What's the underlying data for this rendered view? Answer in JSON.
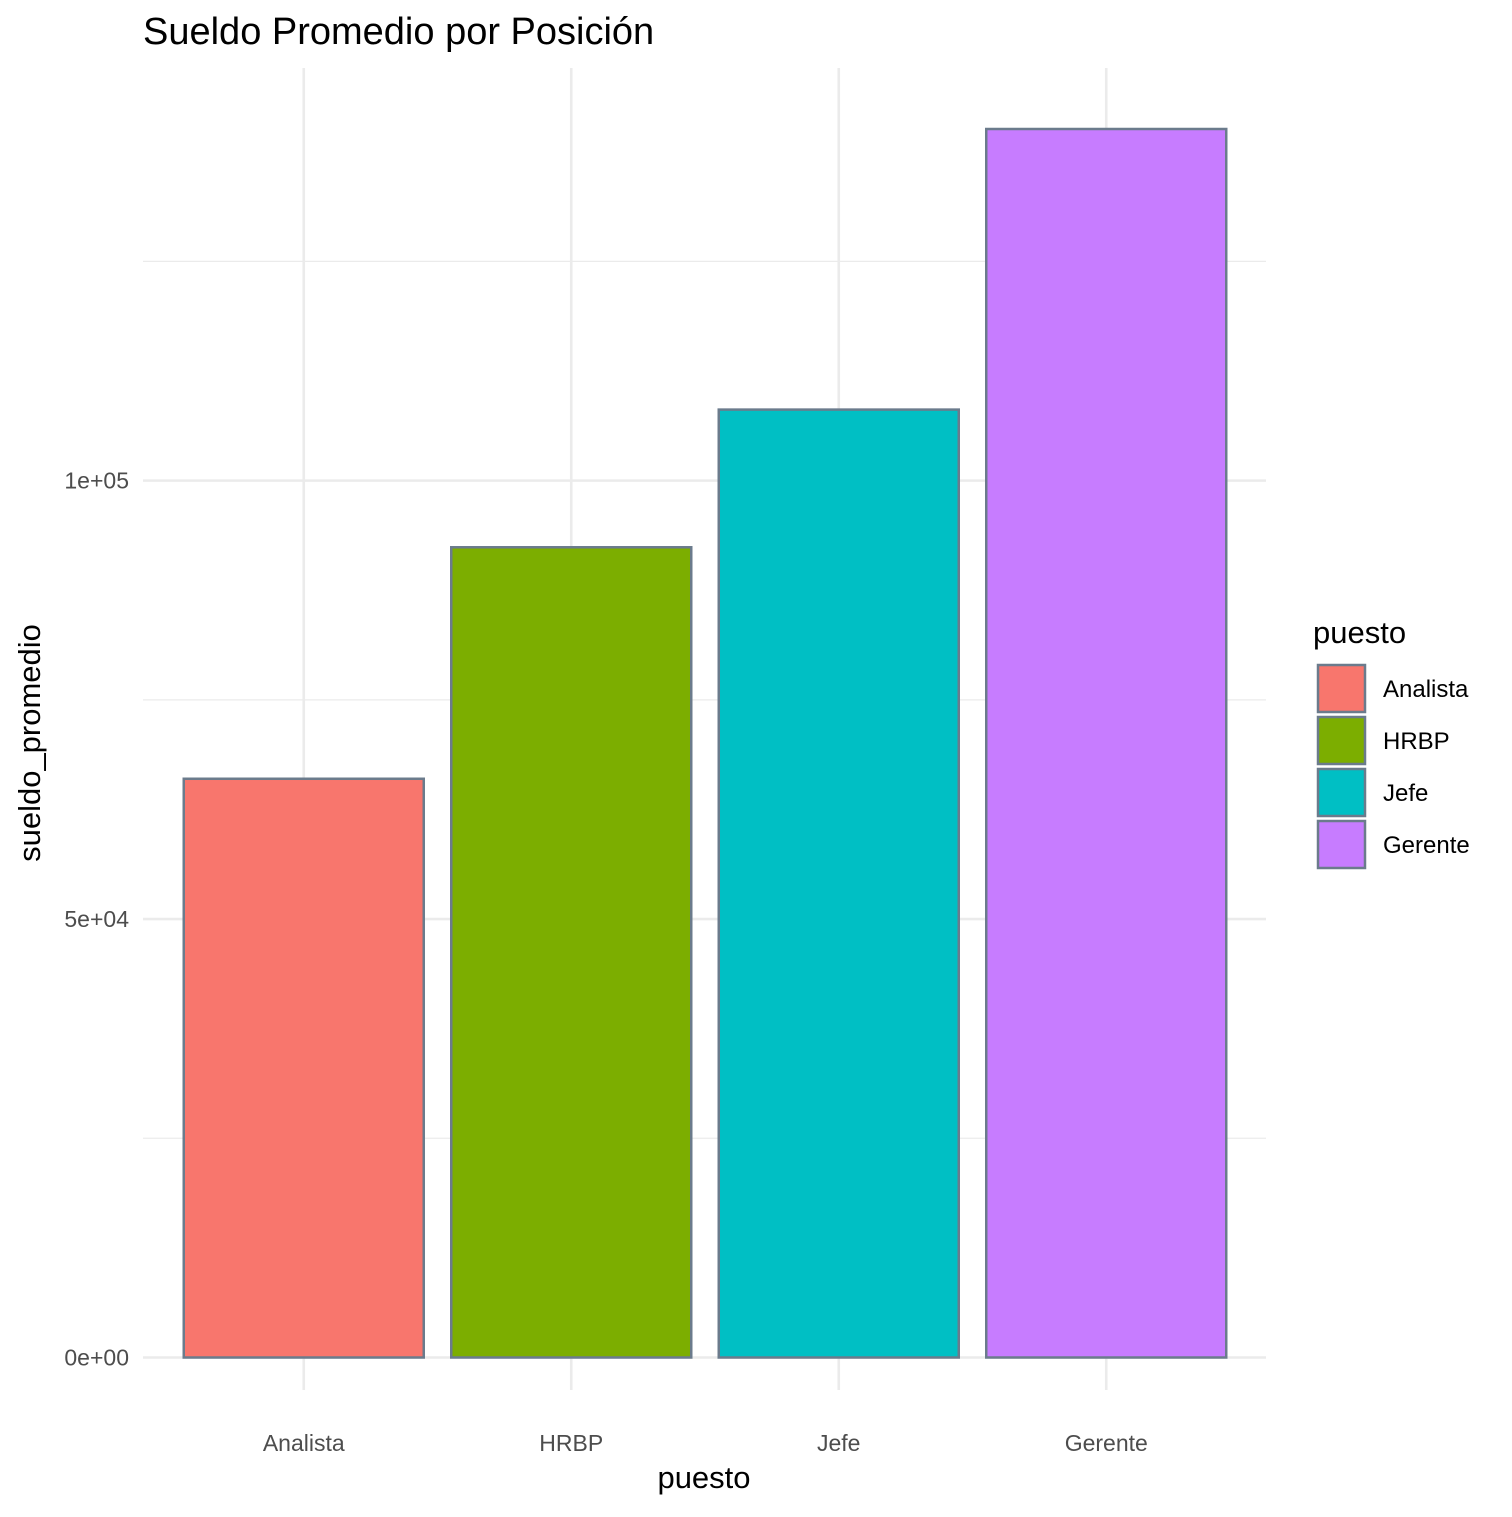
{
  "chart_data": {
    "type": "bar",
    "title": "Sueldo Promedio por Posición",
    "xlabel": "puesto",
    "ylabel": "sueldo_promedio",
    "categories": [
      "Analista",
      "HRBP",
      "Jefe",
      "Gerente"
    ],
    "values": [
      66000,
      92400,
      108100,
      140100
    ],
    "ylim": [
      0,
      140100
    ],
    "y_ticks": [
      {
        "value": 0,
        "label": "0e+00"
      },
      {
        "value": 50000,
        "label": "5e+04"
      },
      {
        "value": 100000,
        "label": "1e+05"
      }
    ],
    "y_minor_ticks": [
      25000,
      75000,
      125000
    ],
    "grid": true,
    "legend": {
      "title": "puesto",
      "placement": "right",
      "items": [
        "Analista",
        "HRBP",
        "Jefe",
        "Gerente"
      ]
    },
    "colors": [
      "#F8766D",
      "#7CAE00",
      "#00BFC4",
      "#C77CFF"
    ],
    "bar_outline_color": "#6b7b8c",
    "grid_color": "#ebebeb"
  }
}
